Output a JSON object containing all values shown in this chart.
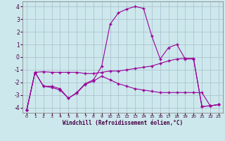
{
  "xlabel": "Windchill (Refroidissement éolien,°C)",
  "background_color": "#cce8ec",
  "grid_color": "#aabbcc",
  "line_color": "#990099",
  "xlim": [
    -0.5,
    23.5
  ],
  "ylim": [
    -4.4,
    4.4
  ],
  "yticks": [
    -4,
    -3,
    -2,
    -1,
    0,
    1,
    2,
    3,
    4
  ],
  "xticks": [
    0,
    1,
    2,
    3,
    4,
    5,
    6,
    7,
    8,
    9,
    10,
    11,
    12,
    13,
    14,
    15,
    16,
    17,
    18,
    19,
    20,
    21,
    22,
    23
  ],
  "hours": [
    0,
    1,
    2,
    3,
    4,
    5,
    6,
    7,
    8,
    9,
    10,
    11,
    12,
    13,
    14,
    15,
    16,
    17,
    18,
    19,
    20,
    21,
    22,
    23
  ],
  "line1": [
    -4.2,
    -1.2,
    -1.15,
    -1.2,
    -1.2,
    -1.2,
    -1.2,
    -1.3,
    -1.3,
    -1.2,
    -1.1,
    -1.1,
    -1.0,
    -0.9,
    -0.8,
    -0.7,
    -0.5,
    -0.3,
    -0.15,
    -0.1,
    -0.1,
    -3.9,
    -3.85,
    -3.75
  ],
  "line2": [
    -4.2,
    -1.2,
    -2.3,
    -2.3,
    -2.5,
    -3.25,
    -2.8,
    -2.1,
    -1.8,
    -0.7,
    2.6,
    3.5,
    3.8,
    4.0,
    3.85,
    1.65,
    -0.15,
    0.75,
    1.0,
    -0.15,
    -0.15,
    -3.9,
    -3.85,
    -3.75
  ],
  "line3": [
    -4.2,
    -1.2,
    -2.3,
    -2.4,
    -2.6,
    -3.25,
    -2.85,
    -2.15,
    -1.9,
    -1.5,
    -1.8,
    -2.1,
    -2.3,
    -2.5,
    -2.6,
    -2.7,
    -2.8,
    -2.8,
    -2.8,
    -2.8,
    -2.8,
    -2.8,
    -3.85,
    -3.75
  ]
}
